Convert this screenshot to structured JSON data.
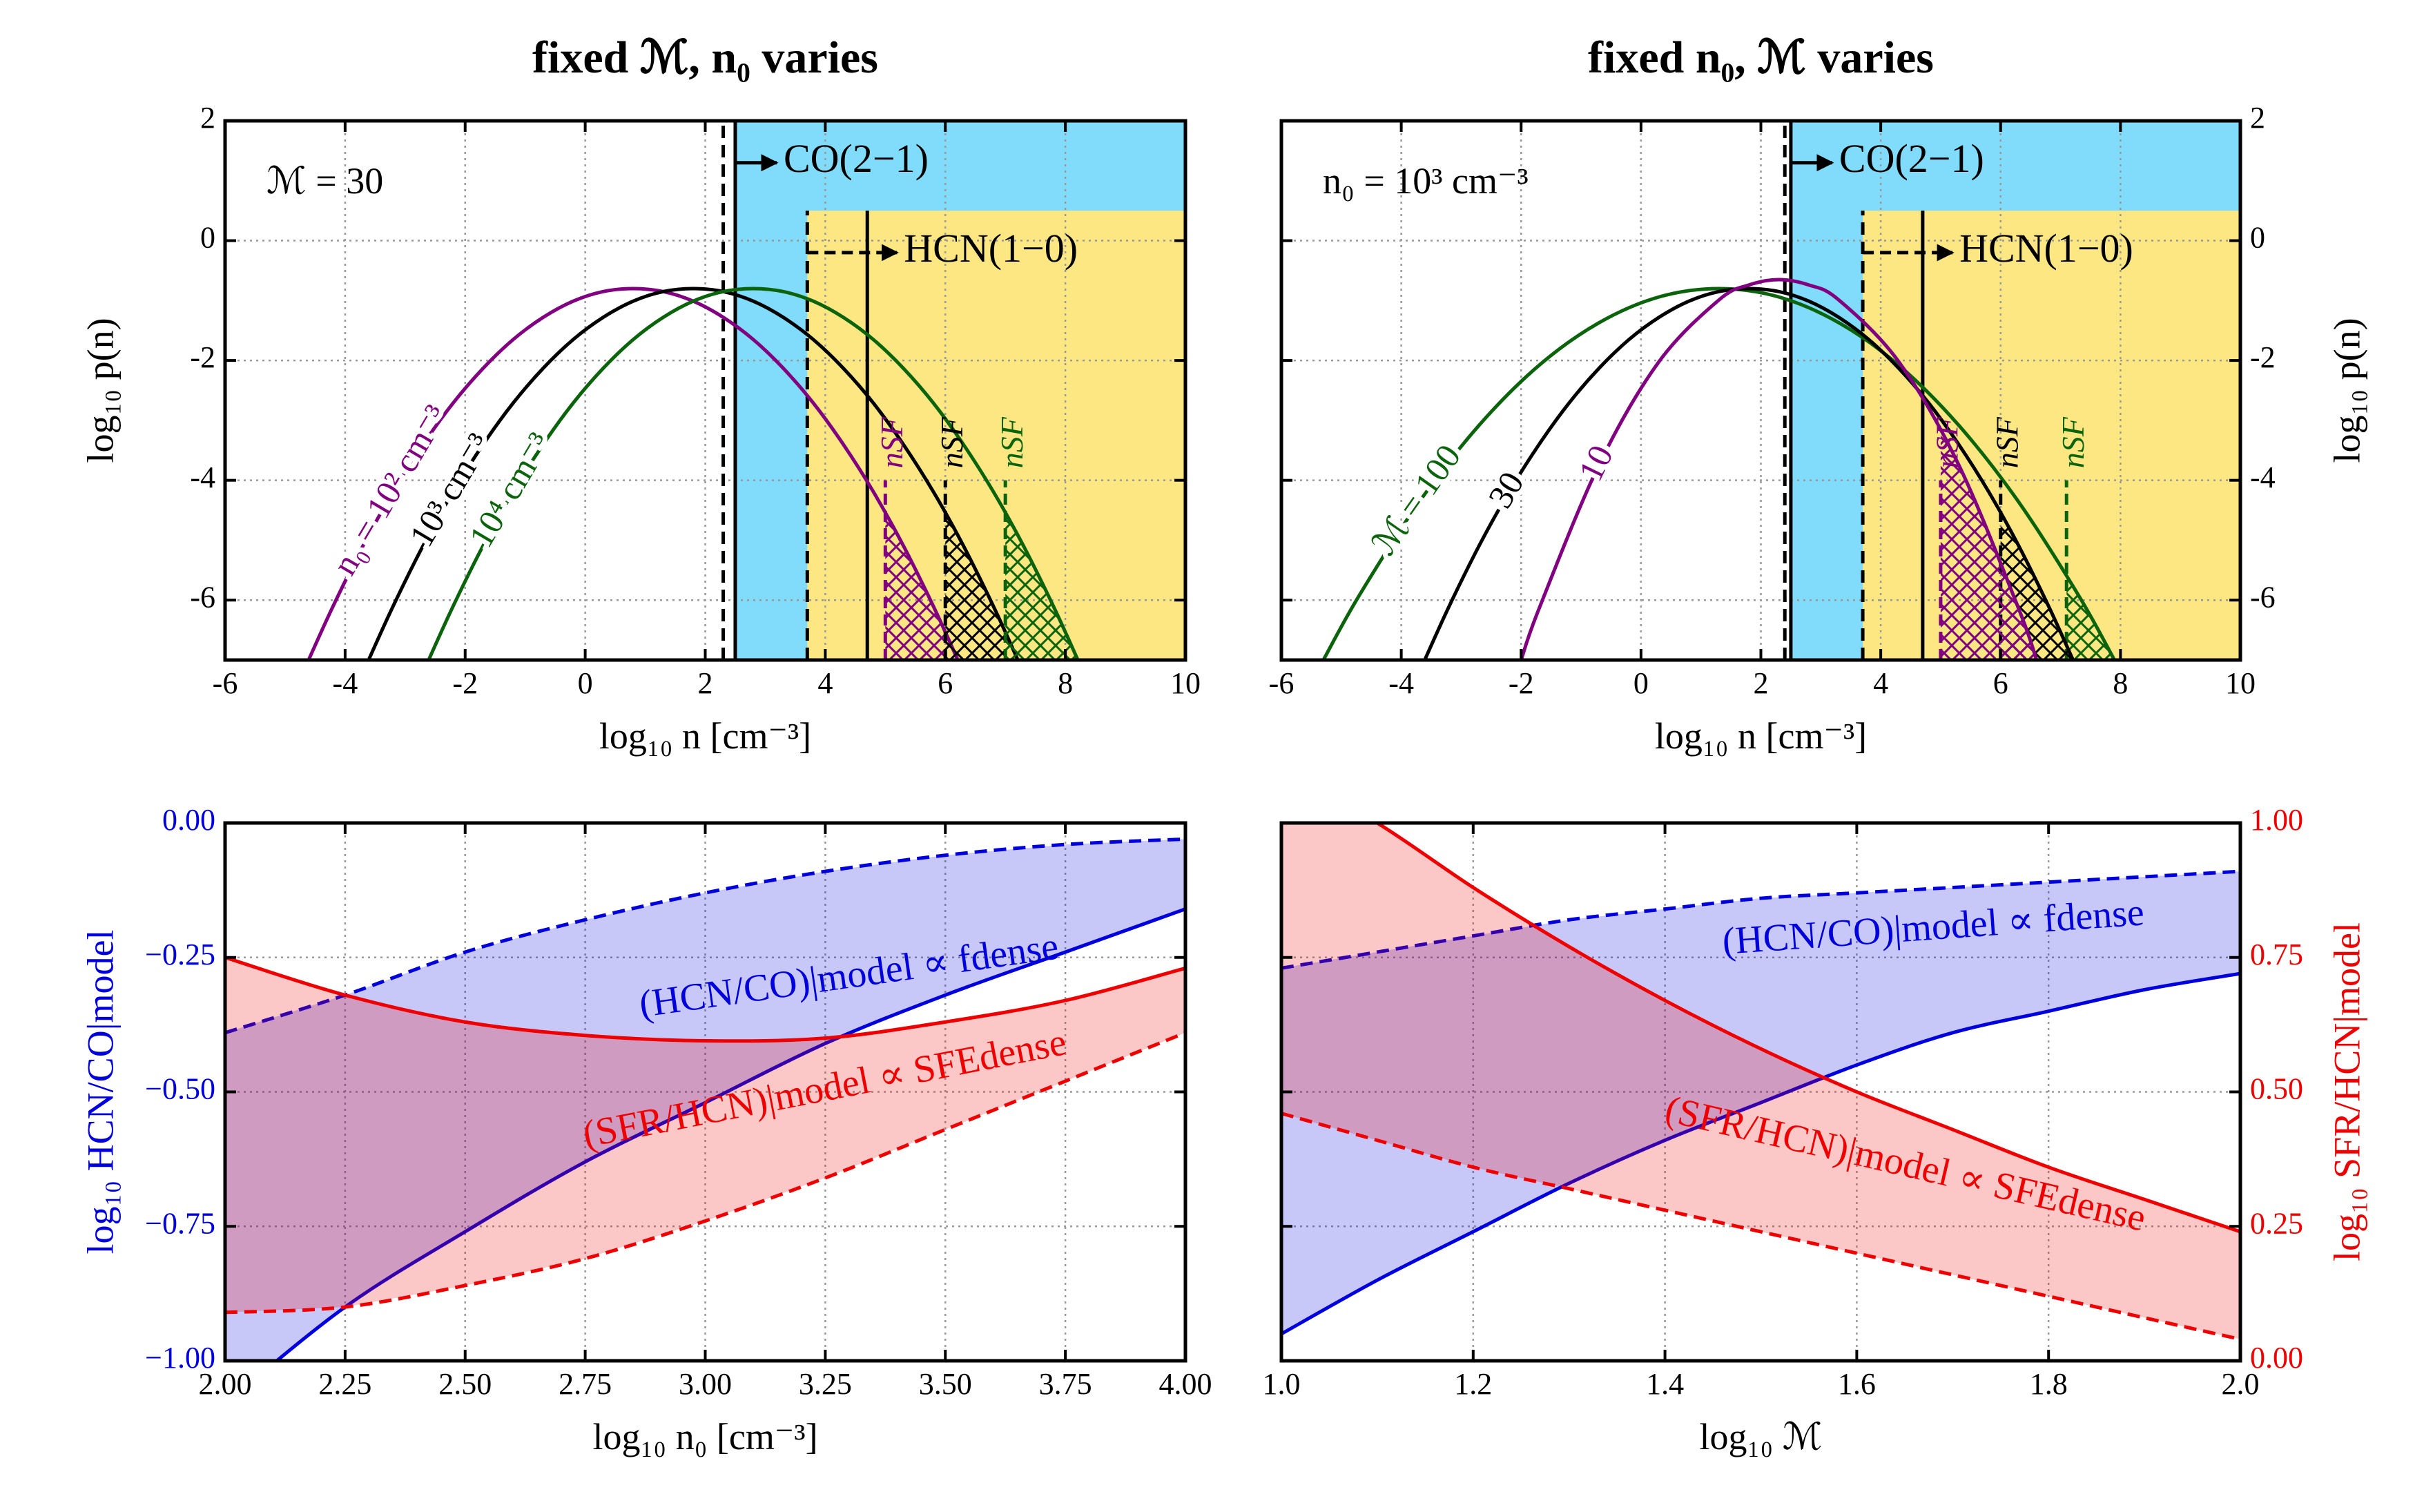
{
  "chart_data": [
    {
      "type": "line",
      "title": "fixed ℳ, n₀ varies",
      "xlabel": "log₁₀ n [cm⁻³]",
      "ylabel": "log₁₀ p(n)",
      "yaxis_side": "left",
      "xlim": [
        -6,
        10
      ],
      "xticks": [
        -6,
        -4,
        -2,
        0,
        2,
        4,
        6,
        8,
        10
      ],
      "ylim": [
        -7,
        2
      ],
      "yticks": [
        -6,
        -4,
        -2,
        0,
        2
      ],
      "grid": true,
      "annotation": "ℳ = 30",
      "regions": [
        {
          "label": "CO(2−1)",
          "fill_x": 2.5,
          "dashed_x": 2.3,
          "solid_x": 2.5,
          "ytop": 2,
          "arrow_from": "solid",
          "color": "#80dcfa"
        },
        {
          "label": "HCN(1−0)",
          "fill_x": 3.7,
          "dashed_x": 3.7,
          "solid_x": 4.7,
          "ytop": 0.5,
          "arrow_from": "dashed",
          "color": "#fde782"
        }
      ],
      "series": [
        {
          "name": "n₀ = 10² cm⁻³",
          "color": "#800080",
          "threshold": 5,
          "threshold_label": "nSF",
          "x": [
            -4.6,
            -4.2,
            -3.7,
            -3.2,
            -2.7,
            -2.2,
            -1.7,
            -1.2,
            -0.7,
            -0.2,
            0.3,
            0.8,
            1.3,
            1.8,
            2.3,
            2.8,
            3.3,
            3.8,
            4.3,
            4.8,
            5.3,
            5.8,
            6.2
          ],
          "values": [
            -6.98,
            -6.1,
            -5.09,
            -4.19,
            -3.4,
            -2.71,
            -2.13,
            -1.65,
            -1.28,
            -1.01,
            -0.85,
            -0.8,
            -0.85,
            -1.01,
            -1.28,
            -1.65,
            -2.13,
            -2.71,
            -3.4,
            -4.19,
            -5.09,
            -6.1,
            -6.98
          ]
        },
        {
          "name": "10³ cm⁻³",
          "color": "#000000",
          "threshold": 6,
          "threshold_label": "nSF",
          "x": [
            -3.6,
            -3.2,
            -2.7,
            -2.2,
            -1.7,
            -1.2,
            -0.7,
            -0.2,
            0.3,
            0.8,
            1.3,
            1.8,
            2.3,
            2.8,
            3.3,
            3.8,
            4.3,
            4.8,
            5.3,
            5.8,
            6.3,
            6.8,
            7.2
          ],
          "values": [
            -6.98,
            -6.1,
            -5.09,
            -4.19,
            -3.4,
            -2.71,
            -2.13,
            -1.65,
            -1.28,
            -1.01,
            -0.85,
            -0.8,
            -0.85,
            -1.01,
            -1.28,
            -1.65,
            -2.13,
            -2.71,
            -3.4,
            -4.19,
            -5.09,
            -6.1,
            -6.98
          ]
        },
        {
          "name": "10⁴ cm⁻³",
          "color": "#0b640b",
          "threshold": 7,
          "threshold_label": "nSF",
          "x": [
            -2.6,
            -2.2,
            -1.7,
            -1.2,
            -0.7,
            -0.2,
            0.3,
            0.8,
            1.3,
            1.8,
            2.3,
            2.8,
            3.3,
            3.8,
            4.3,
            4.8,
            5.3,
            5.8,
            6.3,
            6.8,
            7.3,
            7.8,
            8.2
          ],
          "values": [
            -6.98,
            -6.1,
            -5.09,
            -4.19,
            -3.4,
            -2.71,
            -2.13,
            -1.65,
            -1.28,
            -1.01,
            -0.85,
            -0.8,
            -0.85,
            -1.01,
            -1.28,
            -1.65,
            -2.13,
            -2.71,
            -3.4,
            -4.19,
            -5.09,
            -6.1,
            -6.98
          ]
        }
      ]
    },
    {
      "type": "line",
      "title": "fixed n₀, ℳ varies",
      "xlabel": "log₁₀ n [cm⁻³]",
      "ylabel": "log₁₀ p(n)",
      "yaxis_side": "right",
      "xlim": [
        -6,
        10
      ],
      "xticks": [
        -6,
        -4,
        -2,
        0,
        2,
        4,
        6,
        8,
        10
      ],
      "ylim": [
        -7,
        2
      ],
      "yticks": [
        -6,
        -4,
        -2,
        0,
        2
      ],
      "grid": true,
      "annotation": "n₀ = 10³ cm⁻³",
      "regions": [
        {
          "label": "CO(2−1)",
          "fill_x": 2.5,
          "dashed_x": 2.4,
          "solid_x": 2.5,
          "ytop": 2,
          "arrow_from": "solid",
          "color": "#80dcfa"
        },
        {
          "label": "HCN(1−0)",
          "fill_x": 3.7,
          "dashed_x": 3.7,
          "solid_x": 4.7,
          "ytop": 0.5,
          "arrow_from": "dashed",
          "color": "#fde782"
        }
      ],
      "series": [
        {
          "name": "ℳ = 100",
          "color": "#0b640b",
          "threshold": 7.1,
          "threshold_label": "nSF",
          "x": [
            -5.3,
            -4.7,
            -3.7,
            -2.7,
            -1.7,
            -0.7,
            0.3,
            1.3,
            2.3,
            3.3,
            4.3,
            5.3,
            6.3,
            7.3,
            7.9
          ],
          "values": [
            -7,
            -5.92,
            -4.36,
            -3.08,
            -2.08,
            -1.37,
            -0.94,
            -0.8,
            -0.94,
            -1.37,
            -2.08,
            -3.08,
            -4.36,
            -5.92,
            -7
          ]
        },
        {
          "name": "30",
          "color": "#000000",
          "threshold": 6,
          "threshold_label": "nSF",
          "x": [
            -3.6,
            -3.2,
            -2.7,
            -2.2,
            -1.7,
            -1.2,
            -0.7,
            -0.2,
            0.3,
            0.8,
            1.3,
            1.8,
            2.3,
            2.8,
            3.3,
            3.8,
            4.3,
            4.8,
            5.3,
            5.8,
            6.3,
            6.8,
            7.2
          ],
          "values": [
            -6.98,
            -6.1,
            -5.09,
            -4.19,
            -3.4,
            -2.71,
            -2.13,
            -1.65,
            -1.28,
            -1.01,
            -0.85,
            -0.8,
            -0.85,
            -1.01,
            -1.28,
            -1.65,
            -2.13,
            -2.71,
            -3.4,
            -4.19,
            -5.09,
            -6.1,
            -6.98
          ]
        },
        {
          "name": "10",
          "color": "#800080",
          "threshold": 5,
          "threshold_label": "nSF",
          "x": [
            -2,
            -1.7,
            -0.7,
            0.3,
            1.3,
            1.8,
            2.3,
            2.8,
            3.3,
            4.3,
            5.3,
            6.3,
            6.6
          ],
          "values": [
            -7,
            -6.14,
            -3.74,
            -2.02,
            -0.99,
            -0.74,
            -0.65,
            -0.74,
            -0.99,
            -2.02,
            -3.74,
            -6.14,
            -7
          ]
        }
      ]
    },
    {
      "type": "band",
      "xlabel": "log₁₀ n₀ [cm⁻³]",
      "ylabel": "log₁₀ HCN/CO|model",
      "yaxis_side": "left",
      "xlim": [
        2,
        4
      ],
      "xticks": [
        {
          "value": 2,
          "label": "2.00"
        },
        {
          "value": 2.25,
          "label": "2.25"
        },
        {
          "value": 2.5,
          "label": "2.50"
        },
        {
          "value": 2.75,
          "label": "2.75"
        },
        {
          "value": 3,
          "label": "3.00"
        },
        {
          "value": 3.25,
          "label": "3.25"
        },
        {
          "value": 3.5,
          "label": "3.50"
        },
        {
          "value": 3.75,
          "label": "3.75"
        },
        {
          "value": 4,
          "label": "4.00"
        }
      ],
      "ylim": [
        -1,
        0
      ],
      "yticks": [
        {
          "value": -1,
          "label": "−1.00"
        },
        {
          "value": -0.75,
          "label": "−0.75"
        },
        {
          "value": -0.5,
          "label": "−0.50"
        },
        {
          "value": -0.25,
          "label": "−0.25"
        },
        {
          "value": 0,
          "label": "0.00"
        }
      ],
      "y2lim": [
        0,
        1
      ],
      "grid": true,
      "bands": [
        {
          "name": "(HCN/CO)|model ∝ fdense",
          "color": "#0000dd",
          "axis": "y",
          "dashed": "upper",
          "x": [
            2,
            2.25,
            2.5,
            2.75,
            3,
            3.25,
            3.5,
            3.75,
            4
          ],
          "lower": [
            -1.08,
            -0.9,
            -0.76,
            -0.63,
            -0.52,
            -0.41,
            -0.32,
            -0.24,
            -0.16
          ],
          "upper": [
            -0.39,
            -0.32,
            -0.24,
            -0.18,
            -0.13,
            -0.09,
            -0.06,
            -0.04,
            -0.03
          ]
        },
        {
          "name": "(SFR/HCN)|model ∝ SFEdense",
          "color": "#ee0000",
          "axis": "y2",
          "dashed": "lower",
          "x": [
            2,
            2.25,
            2.5,
            2.75,
            3,
            3.25,
            3.5,
            3.75,
            4
          ],
          "lower": [
            0.09,
            0.1,
            0.14,
            0.19,
            0.26,
            0.34,
            0.43,
            0.52,
            0.61
          ],
          "upper": [
            0.75,
            0.68,
            0.63,
            0.605,
            0.595,
            0.6,
            0.63,
            0.67,
            0.73
          ]
        }
      ]
    },
    {
      "type": "band",
      "xlabel": "log₁₀ ℳ",
      "y2label": "log₁₀ SFR/HCN|model",
      "yaxis_side": "right",
      "xlim": [
        1,
        2
      ],
      "xticks": [
        {
          "value": 1,
          "label": "1.0"
        },
        {
          "value": 1.2,
          "label": "1.2"
        },
        {
          "value": 1.4,
          "label": "1.4"
        },
        {
          "value": 1.6,
          "label": "1.6"
        },
        {
          "value": 1.8,
          "label": "1.8"
        },
        {
          "value": 2,
          "label": "2.0"
        }
      ],
      "ylim": [
        -1,
        0
      ],
      "y2lim": [
        0,
        1
      ],
      "y2ticks": [
        {
          "value": 0,
          "label": "0.00"
        },
        {
          "value": 0.25,
          "label": "0.25"
        },
        {
          "value": 0.5,
          "label": "0.50"
        },
        {
          "value": 0.75,
          "label": "0.75"
        },
        {
          "value": 1,
          "label": "1.00"
        }
      ],
      "grid": true,
      "bands": [
        {
          "name": "(HCN/CO)|model ∝ fdense",
          "color": "#0000dd",
          "axis": "y",
          "dashed": "upper",
          "x": [
            1,
            1.1,
            1.2,
            1.3,
            1.4,
            1.5,
            1.6,
            1.7,
            1.8,
            1.9,
            2
          ],
          "lower": [
            -0.95,
            -0.85,
            -0.76,
            -0.67,
            -0.59,
            -0.52,
            -0.45,
            -0.39,
            -0.35,
            -0.31,
            -0.28
          ],
          "upper": [
            -0.27,
            -0.24,
            -0.21,
            -0.18,
            -0.16,
            -0.14,
            -0.13,
            -0.12,
            -0.11,
            -0.1,
            -0.09
          ]
        },
        {
          "name": "(SFR/HCN)|model ∝ SFEdense",
          "color": "#ee0000",
          "axis": "y2",
          "dashed": "lower",
          "x": [
            1,
            1.1,
            1.2,
            1.3,
            1.4,
            1.5,
            1.6,
            1.7,
            1.8,
            1.9,
            2
          ],
          "lower": [
            0.46,
            0.41,
            0.36,
            0.32,
            0.28,
            0.24,
            0.2,
            0.16,
            0.12,
            0.08,
            0.04
          ],
          "upper": [
            1.1,
            1.0,
            0.88,
            0.77,
            0.67,
            0.58,
            0.5,
            0.43,
            0.36,
            0.3,
            0.24
          ]
        }
      ]
    }
  ]
}
